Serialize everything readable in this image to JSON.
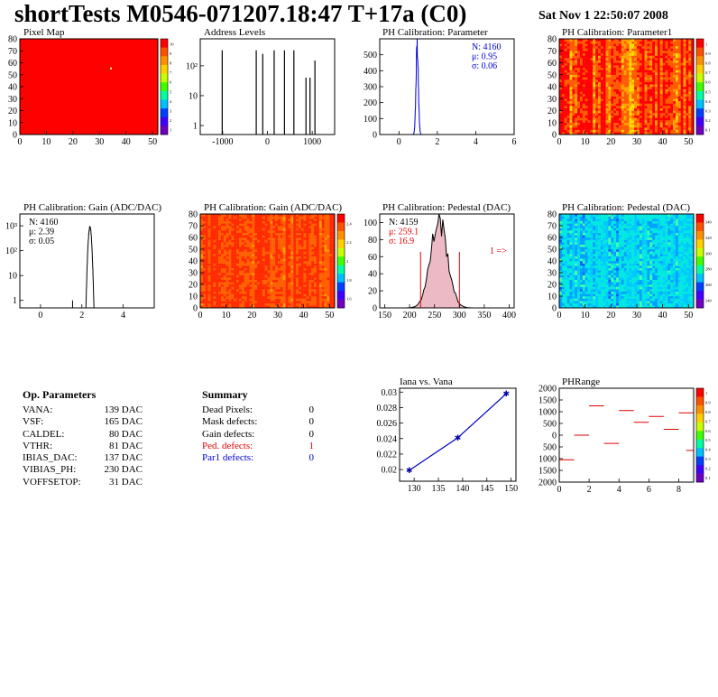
{
  "title": "shortTests M0546-071207.18:47 T+17a (C0)",
  "timestamp": "Sat Nov  1 22:50:07 2008",
  "op_parameters": {
    "header": "Op. Parameters",
    "rows": [
      {
        "label": "VANA:",
        "value": "139 DAC"
      },
      {
        "label": "VSF:",
        "value": "165 DAC"
      },
      {
        "label": "CALDEL:",
        "value": "80 DAC"
      },
      {
        "label": "VTHR:",
        "value": "81 DAC"
      },
      {
        "label": "IBIAS_DAC:",
        "value": "137 DAC"
      },
      {
        "label": "VIBIAS_PH:",
        "value": "230 DAC"
      },
      {
        "label": "VOFFSETOP:",
        "value": "31 DAC"
      }
    ]
  },
  "summary": {
    "header": "Summary",
    "rows": [
      {
        "label": "Dead Pixels:",
        "value": "0",
        "color": "#000000"
      },
      {
        "label": "Mask defects:",
        "value": "0",
        "color": "#000000"
      },
      {
        "label": "Gain defects:",
        "value": "0",
        "color": "#000000"
      },
      {
        "label": "Ped. defects:",
        "value": "1",
        "color": "#e00000"
      },
      {
        "label": "Par1 defects:",
        "value": "0",
        "color": "#0000d0"
      }
    ]
  },
  "chart_data": [
    {
      "type": "heatmap",
      "title": "Pixel Map",
      "xlim": [
        0,
        52
      ],
      "ylim": [
        0,
        80
      ],
      "xticks": [
        0,
        10,
        20,
        30,
        40,
        50
      ],
      "yticks": [
        0,
        10,
        20,
        30,
        40,
        50,
        60,
        70,
        80
      ],
      "palette": "uniform",
      "uniform_color": "#ff0000",
      "highlight_pixel": {
        "x": 34,
        "y": 56
      },
      "zticks": [
        "10",
        "9",
        "8",
        "7",
        "6",
        "5",
        "4",
        "3",
        "2",
        "1"
      ]
    },
    {
      "type": "bar",
      "title": "Address Levels",
      "yscale": "log",
      "xlim": [
        -1500,
        1500
      ],
      "ylim": [
        0.5,
        800
      ],
      "xticks": [
        -1000,
        0,
        1000
      ],
      "xtick_labels": [
        "-1000",
        "0",
        "1000"
      ],
      "yticks": [
        1,
        10,
        100
      ],
      "ytick_labels": [
        "1",
        "10",
        "10²"
      ],
      "spikes": [
        {
          "x": -1010,
          "y": 330
        },
        {
          "x": -250,
          "y": 330
        },
        {
          "x": -105,
          "y": 250
        },
        {
          "x": 150,
          "y": 330
        },
        {
          "x": 380,
          "y": 330
        },
        {
          "x": 590,
          "y": 330
        },
        {
          "x": 860,
          "y": 40
        },
        {
          "x": 950,
          "y": 40
        },
        {
          "x": 1060,
          "y": 150
        }
      ]
    },
    {
      "type": "histogram",
      "title": "PH Calibration: Parameter",
      "xlim": [
        -1,
        6
      ],
      "ylim": [
        0,
        600
      ],
      "xticks": [
        0,
        2,
        4,
        6
      ],
      "yticks": [
        0,
        100,
        200,
        300,
        400,
        500
      ],
      "peak_mean": 0.95,
      "peak_sigma": 0.06,
      "peak_height": 550,
      "stats": [
        {
          "label": "N:",
          "value": "4160",
          "color": "#0000d0"
        },
        {
          "label": "μ:",
          "value": "0.95",
          "color": "#0000d0"
        },
        {
          "label": "σ:",
          "value": "0.06",
          "color": "#0000d0"
        }
      ]
    },
    {
      "type": "heatmap",
      "title": "PH Calibration: Parameter1",
      "xlim": [
        0,
        52
      ],
      "ylim": [
        0,
        80
      ],
      "xticks": [
        0,
        10,
        20,
        30,
        40,
        50
      ],
      "yticks": [
        0,
        10,
        20,
        30,
        40,
        50,
        60,
        70,
        80
      ],
      "palette": "warm",
      "zticks": [
        "1",
        "0.9",
        "0.8",
        "0.7",
        "0.6",
        "0.5",
        "0.4",
        "0.3",
        "0.2",
        "0.1"
      ]
    },
    {
      "type": "histogram",
      "title": "PH Calibration: Gain (ADC/DAC)",
      "yscale": "log",
      "xlim": [
        -1,
        5.5
      ],
      "ylim": [
        0.5,
        3000
      ],
      "xticks": [
        0,
        2,
        4
      ],
      "yticks": [
        1,
        10,
        100,
        1000
      ],
      "ytick_labels": [
        "1",
        "10",
        "10²",
        "10³"
      ],
      "peak_mean": 2.39,
      "peak_sigma": 0.05,
      "peak_height": 900,
      "outliers": [
        {
          "x": 1.55,
          "y": 1
        }
      ],
      "stats": [
        {
          "label": "N:",
          "value": "4160",
          "color": "#000000"
        },
        {
          "label": "μ:",
          "value": "2.39",
          "color": "#000000"
        },
        {
          "label": "σ:",
          "value": "0.05",
          "color": "#000000"
        }
      ]
    },
    {
      "type": "heatmap",
      "title": "PH Calibration: Gain (ADC/DAC)",
      "xlim": [
        0,
        52
      ],
      "ylim": [
        0,
        80
      ],
      "xticks": [
        0,
        10,
        20,
        30,
        40,
        50
      ],
      "yticks": [
        0,
        10,
        20,
        30,
        40,
        50,
        60,
        70,
        80
      ],
      "palette": "gain",
      "zticks": [
        "2.4",
        "2.2",
        "2",
        "1.8",
        "1.6"
      ]
    },
    {
      "type": "histogram",
      "title": "PH Calibration: Pedestal (DAC)",
      "xlim": [
        140,
        410
      ],
      "ylim": [
        0,
        110
      ],
      "xticks": [
        150,
        200,
        250,
        300,
        350,
        400
      ],
      "yticks": [
        0,
        20,
        40,
        60,
        80,
        100
      ],
      "peak_mean": 259.1,
      "peak_sigma": 16.9,
      "peak_height": 102,
      "cut_lines": [
        222,
        300
      ],
      "overflow_label": "1 =>",
      "stats": [
        {
          "label": "N:",
          "value": "4159",
          "color": "#000000"
        },
        {
          "label": "μ:",
          "value": "259.1",
          "color": "#e00000"
        },
        {
          "label": "σ:",
          "value": "16.9",
          "color": "#e00000"
        }
      ]
    },
    {
      "type": "heatmap",
      "title": "PH Calibration: Pedestal (DAC)",
      "xlim": [
        0,
        52
      ],
      "ylim": [
        0,
        80
      ],
      "xticks": [
        0,
        10,
        20,
        30,
        40,
        50
      ],
      "yticks": [
        0,
        10,
        20,
        30,
        40,
        50,
        60,
        70,
        80
      ],
      "palette": "cool",
      "zticks": [
        "340",
        "320",
        "300",
        "280",
        "260",
        "240"
      ]
    },
    {
      "type": "line",
      "title": "Iana vs. Vana",
      "xlim": [
        127,
        151
      ],
      "ylim": [
        0.0185,
        0.0305
      ],
      "xticks": [
        130,
        135,
        140,
        145,
        150
      ],
      "yticks": [
        0.02,
        0.022,
        0.024,
        0.026,
        0.028,
        0.03
      ],
      "x": [
        129,
        139,
        149
      ],
      "y": [
        0.0199,
        0.0241,
        0.0298
      ]
    },
    {
      "type": "heatmap",
      "title": "PHRange",
      "xlim": [
        0,
        9
      ],
      "ylim": [
        -2000,
        2000
      ],
      "xticks": [
        0,
        2,
        4,
        6,
        8
      ],
      "yticks": [
        -2000,
        -1500,
        -1000,
        -500,
        0,
        500,
        1000,
        1500,
        2000
      ],
      "ytick_labels": [
        "2000",
        "1500",
        "1000",
        "500",
        "0",
        "500",
        "1000",
        "1500",
        "2000"
      ],
      "palette": "none",
      "segments": [
        {
          "x": 0,
          "y": -1050
        },
        {
          "x": 1,
          "y": 0
        },
        {
          "x": 2,
          "y": 1250
        },
        {
          "x": 3,
          "y": -350
        },
        {
          "x": 4,
          "y": 1050
        },
        {
          "x": 5,
          "y": 550
        },
        {
          "x": 6,
          "y": 800
        },
        {
          "x": 7,
          "y": 250
        },
        {
          "x": 8,
          "y": 950
        },
        {
          "x": 8.5,
          "y": -650
        }
      ],
      "zticks": [
        "1",
        "0.9",
        "0.8",
        "0.7",
        "0.6",
        "0.5",
        "0.4",
        "0.3",
        "0.2",
        "0.1"
      ]
    }
  ]
}
